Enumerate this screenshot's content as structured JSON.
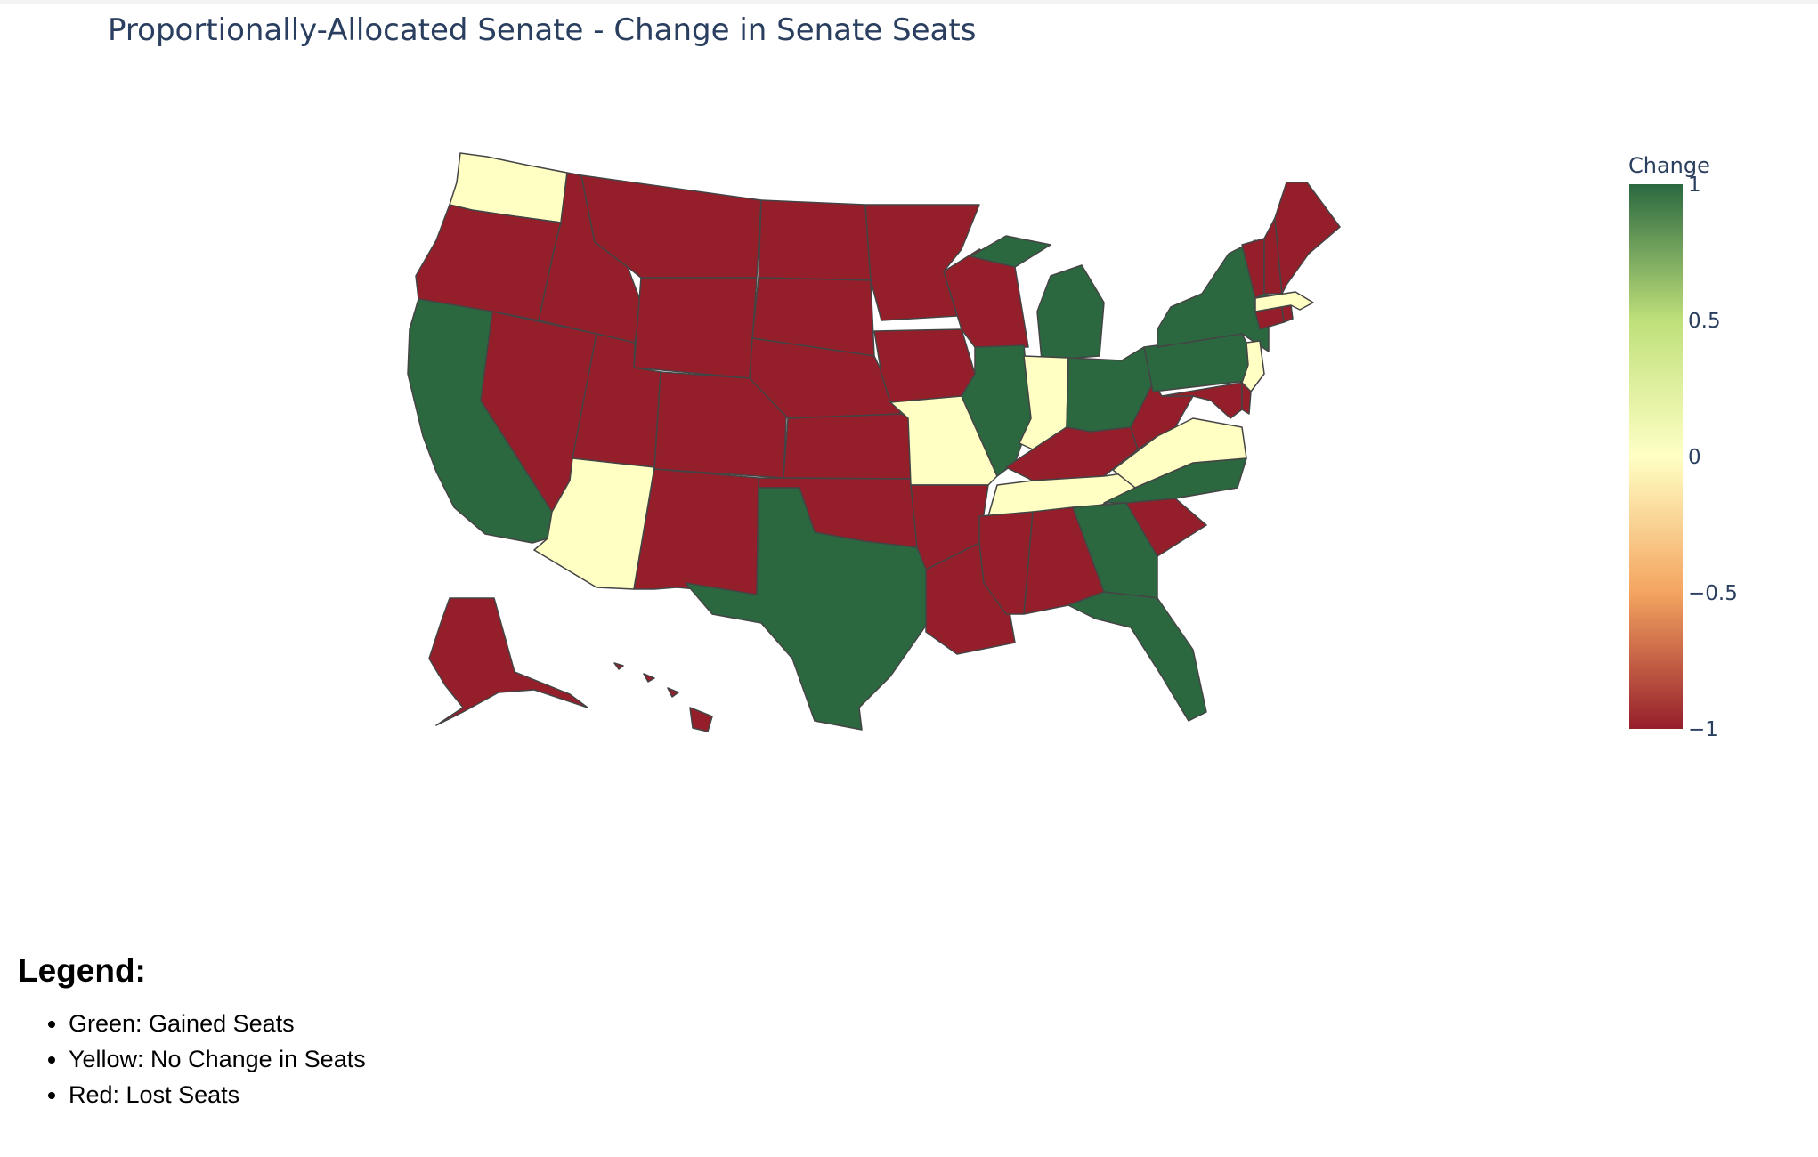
{
  "title": "Proportionally-Allocated Senate - Change in Senate Seats",
  "map_data": {
    "scope": "usa",
    "colorbar": {
      "title": "Change",
      "range": [
        -1,
        1
      ],
      "tick_labels": [
        "1",
        "0.5",
        "0",
        "−0.5",
        "−1"
      ],
      "colorscale": [
        "#a50026",
        "#f46d43",
        "#fee08b",
        "#ffffbf",
        "#d9ef8b",
        "#66bd63",
        "#006837"
      ]
    },
    "colors": {
      "gained": "#2b6840",
      "no_change": "#ffffc4",
      "lost": "#951e2b",
      "border": "#444444"
    },
    "states": {
      "gained": [
        "CA",
        "TX",
        "FL",
        "GA",
        "NC",
        "IL",
        "MI",
        "OH",
        "PA",
        "NY"
      ],
      "no_change": [
        "WA",
        "AZ",
        "MO",
        "IN",
        "TN",
        "VA",
        "NJ",
        "MA"
      ],
      "lost": [
        "OR",
        "ID",
        "MT",
        "WY",
        "NV",
        "UT",
        "CO",
        "NM",
        "ND",
        "SD",
        "NE",
        "KS",
        "OK",
        "MN",
        "IA",
        "WI",
        "AR",
        "LA",
        "MS",
        "AL",
        "KY",
        "WV",
        "SC",
        "MD",
        "DE",
        "CT",
        "VT",
        "NH",
        "ME",
        "RI",
        "AK",
        "HI"
      ]
    }
  },
  "legend": {
    "heading": "Legend:",
    "items": [
      "Green: Gained Seats",
      "Yellow: No Change in Seats",
      "Red: Lost Seats"
    ]
  }
}
